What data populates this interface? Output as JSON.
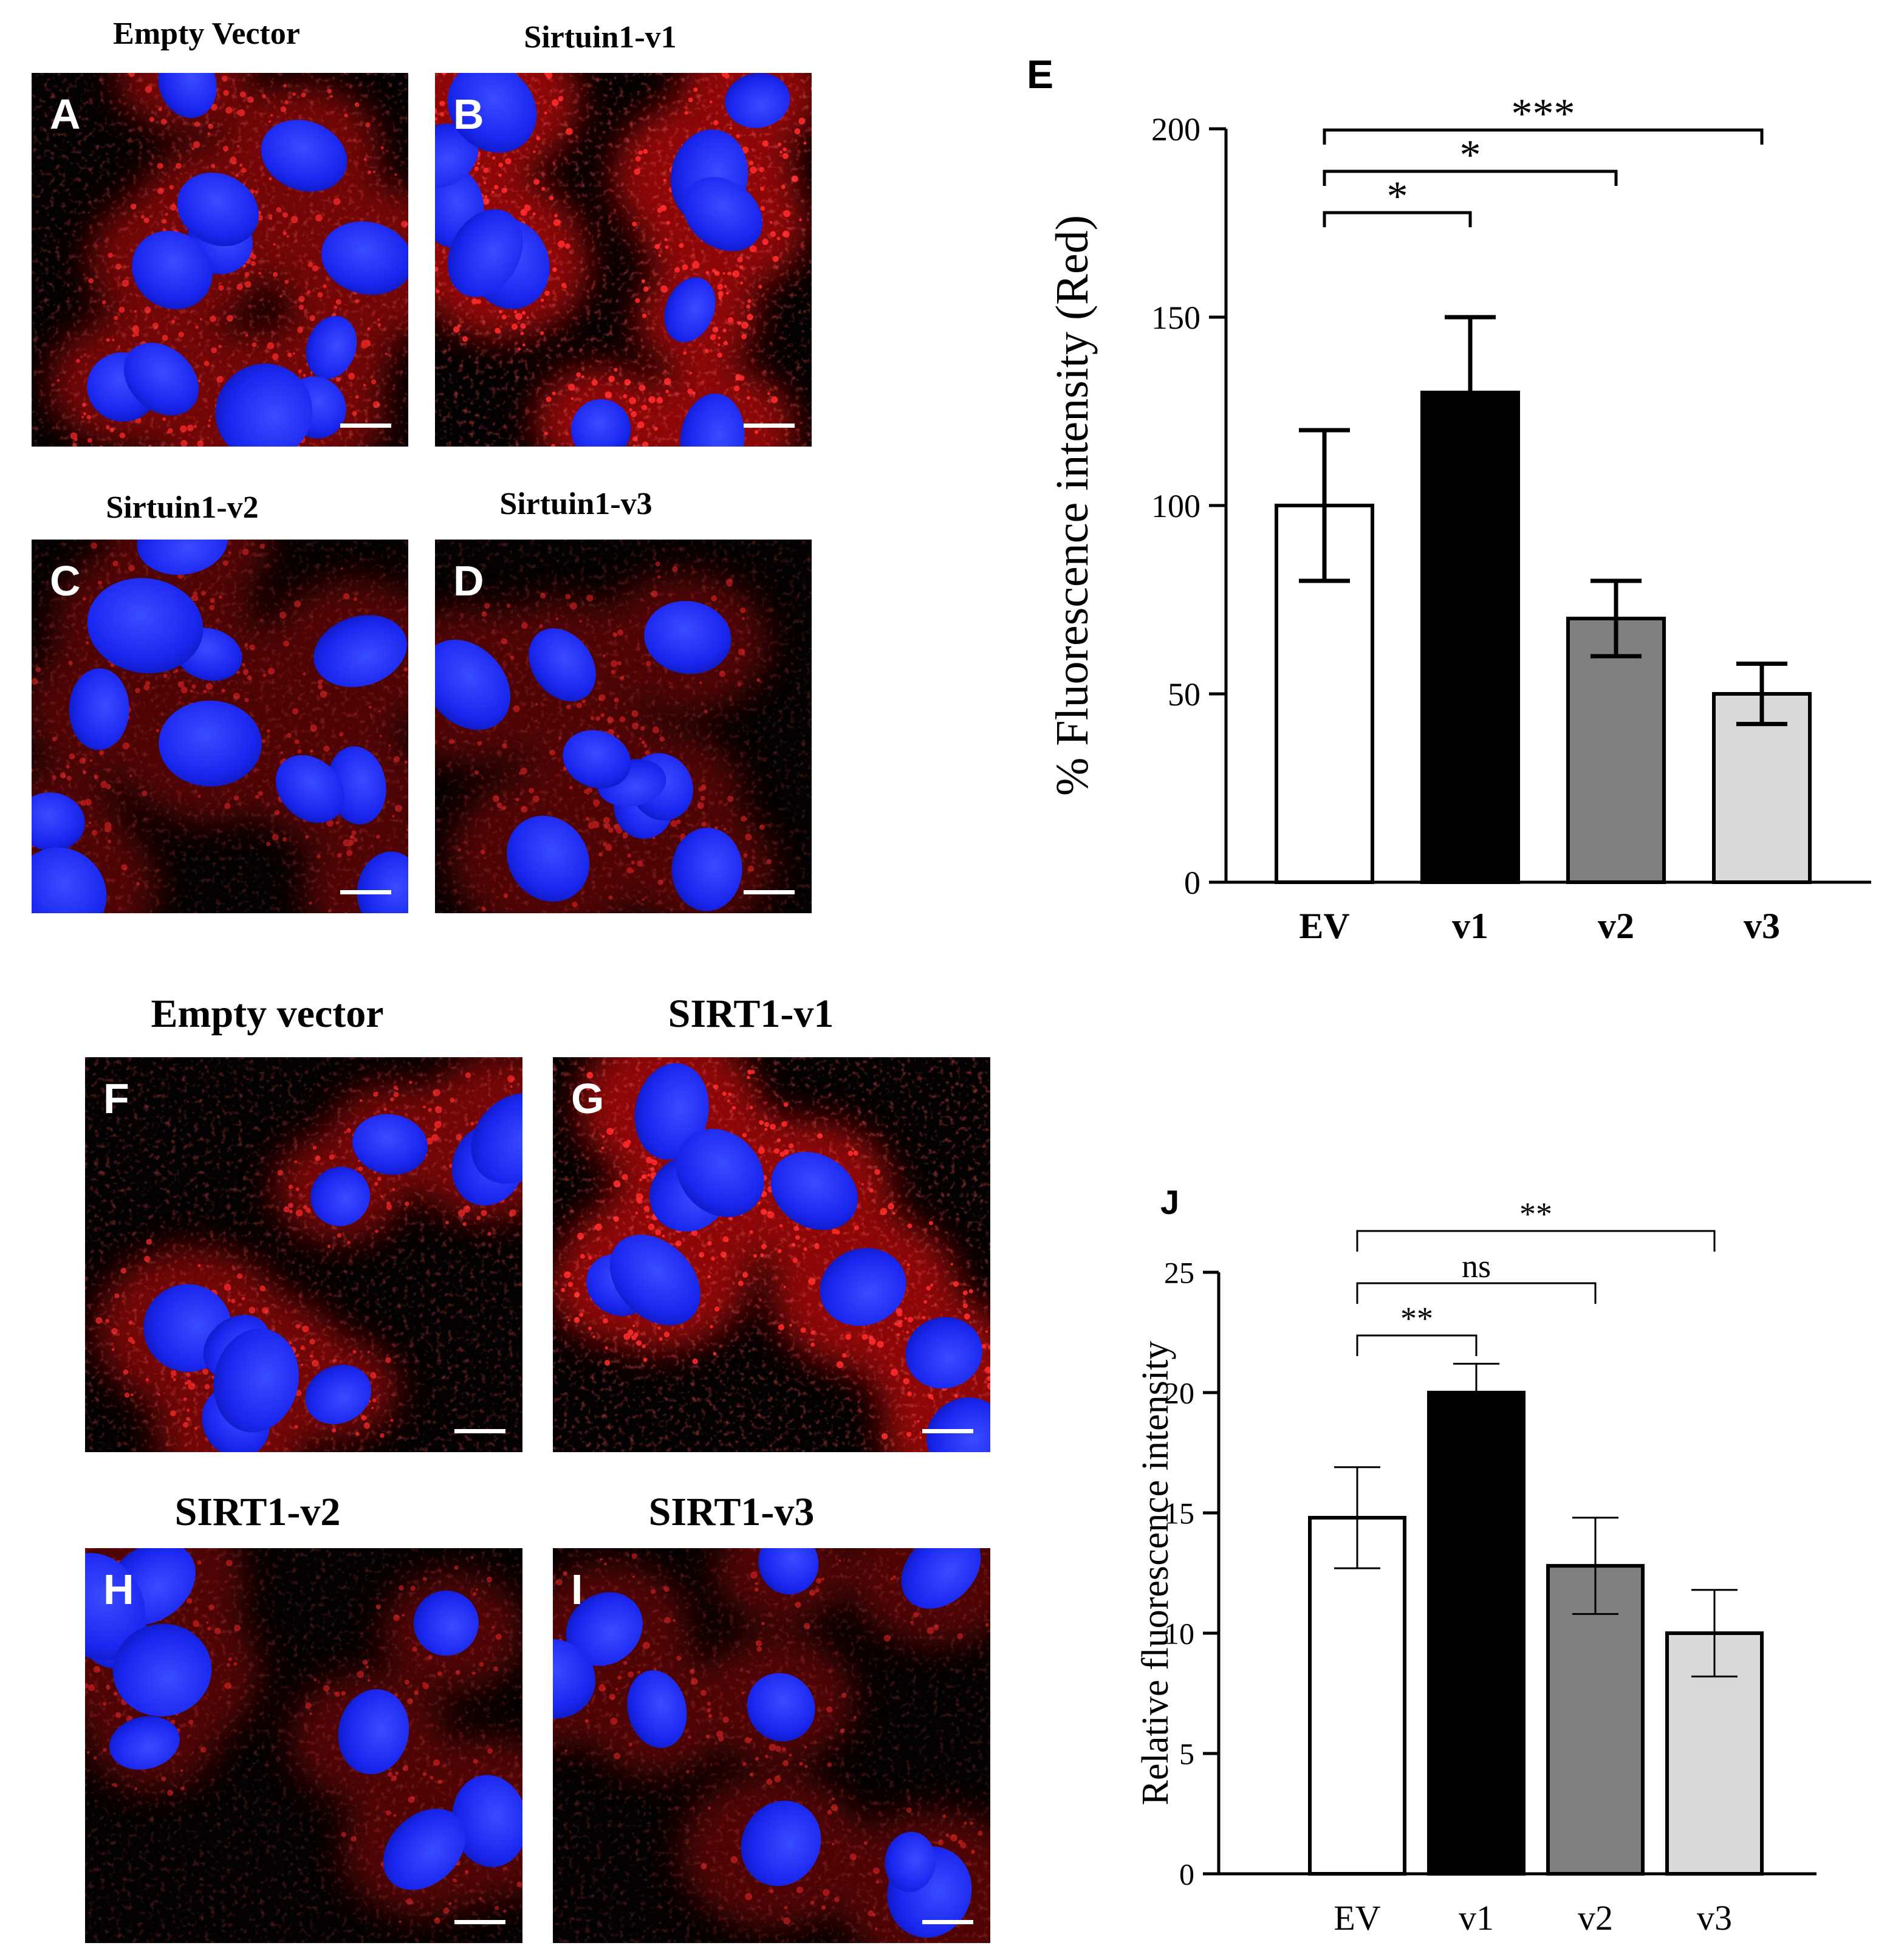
{
  "colors": {
    "micro_bg": "#030101",
    "cytoplasm_red": "#ff1010",
    "nucleus_blue": "#1a28f0",
    "scale_bar": "#ffffff",
    "bar_white": "#ffffff",
    "bar_black": "#000000",
    "bar_dark_gray": "#808080",
    "bar_light_gray": "#d9d9d9",
    "axis": "#000000"
  },
  "panels": [
    {
      "id": "A",
      "letter": "A",
      "title": "Empty Vector",
      "group": "top",
      "signal": "medium"
    },
    {
      "id": "B",
      "letter": "B",
      "title": "Sirtuin1-v1",
      "group": "top",
      "signal": "high"
    },
    {
      "id": "C",
      "letter": "C",
      "title": "Sirtuin1-v2",
      "group": "top",
      "signal": "low"
    },
    {
      "id": "D",
      "letter": "D",
      "title": "Sirtuin1-v3",
      "group": "top",
      "signal": "low"
    },
    {
      "id": "F",
      "letter": "F",
      "title": "Empty vector",
      "group": "bottom",
      "signal": "medium"
    },
    {
      "id": "G",
      "letter": "G",
      "title": "SIRT1-v1",
      "group": "bottom",
      "signal": "high"
    },
    {
      "id": "H",
      "letter": "H",
      "title": "SIRT1-v2",
      "group": "bottom",
      "signal": "low"
    },
    {
      "id": "I",
      "letter": "I",
      "title": "SIRT1-v3",
      "group": "bottom",
      "signal": "low"
    }
  ],
  "chart_data": [
    {
      "id": "E",
      "panel_label": "E",
      "type": "bar",
      "categories": [
        "EV",
        "v1",
        "v2",
        "v3"
      ],
      "values": [
        100,
        130,
        70,
        50
      ],
      "errors": [
        20,
        20,
        10,
        8
      ],
      "bar_colors": [
        "#ffffff",
        "#000000",
        "#808080",
        "#d9d9d9"
      ],
      "ylabel": "% Fluorescence intensity (Red)",
      "xlabel": "",
      "ylim": [
        0,
        200
      ],
      "yticks": [
        0,
        50,
        100,
        150,
        200
      ],
      "grid": false,
      "significance": [
        {
          "from": "EV",
          "to": "v1",
          "label": "*"
        },
        {
          "from": "EV",
          "to": "v2",
          "label": "*"
        },
        {
          "from": "EV",
          "to": "v3",
          "label": "***"
        }
      ]
    },
    {
      "id": "J",
      "panel_label": "J",
      "type": "bar",
      "categories": [
        "EV",
        "v1",
        "v2",
        "v3"
      ],
      "values": [
        14.8,
        20.0,
        12.8,
        10.0
      ],
      "errors": [
        2.1,
        1.2,
        2.0,
        1.8
      ],
      "bar_colors": [
        "#ffffff",
        "#000000",
        "#808080",
        "#d9d9d9"
      ],
      "ylabel": "Relative fluorescence intensity",
      "xlabel": "",
      "ylim": [
        0,
        25
      ],
      "yticks": [
        0,
        5,
        10,
        15,
        20,
        25
      ],
      "grid": false,
      "significance": [
        {
          "from": "EV",
          "to": "v1",
          "label": "**"
        },
        {
          "from": "EV",
          "to": "v2",
          "label": "ns"
        },
        {
          "from": "EV",
          "to": "v3",
          "label": "**"
        }
      ]
    }
  ]
}
